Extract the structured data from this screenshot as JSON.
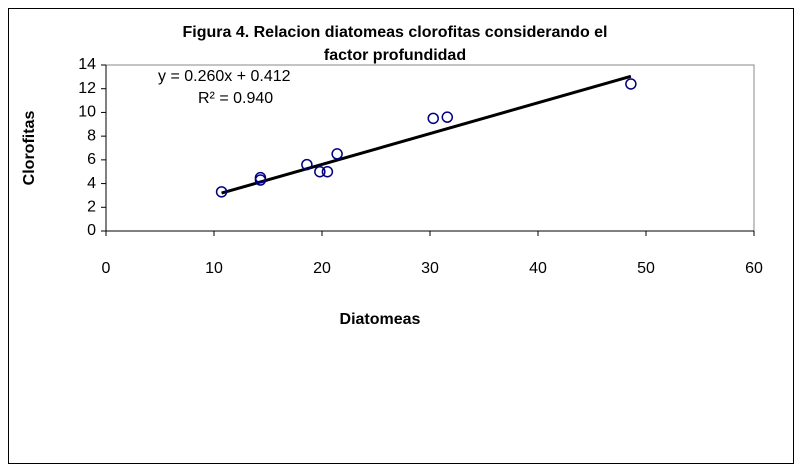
{
  "chart_data": {
    "type": "scatter",
    "title": [
      "Figura 4. Relacion diatomeas clorofitas considerando el",
      "factor profundidad"
    ],
    "x_label": "Diatomeas",
    "y_label": "Clorofitas",
    "x": [
      10.7,
      14.3,
      14.3,
      18.6,
      19.8,
      20.5,
      21.4,
      30.3,
      31.6,
      48.6
    ],
    "series": [
      {
        "name": "Clorofitas",
        "color": "#000080",
        "values": [
          3.3,
          4.3,
          4.5,
          5.6,
          5.0,
          5.0,
          6.5,
          9.5,
          9.6,
          12.4
        ]
      }
    ],
    "trendline": {
      "x": [
        10.7,
        48.6
      ],
      "y": [
        3.2,
        13.05
      ],
      "color": "#000000"
    },
    "annotations": [
      "y = 0.260x + 0.412",
      "R² = 0.940"
    ],
    "xlim": [
      0,
      60
    ],
    "xticks": [
      0,
      10,
      20,
      30,
      40,
      50,
      60
    ],
    "ylim": [
      0,
      14
    ],
    "yticks": [
      0,
      2,
      4,
      6,
      8,
      10,
      12,
      14
    ],
    "grid": false
  }
}
